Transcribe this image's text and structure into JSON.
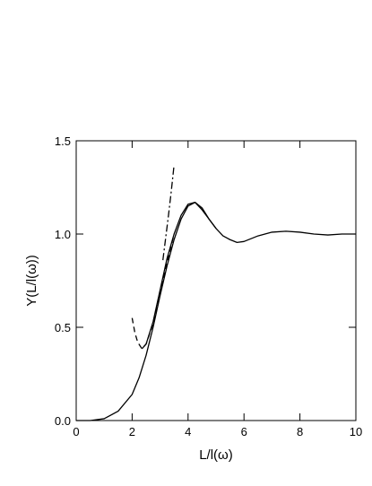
{
  "chart_data": {
    "type": "line",
    "x_label": "L/l(ω)",
    "y_label": "Υ(L/l(ω))",
    "xlim": [
      0,
      10
    ],
    "ylim": [
      0,
      1.5
    ],
    "xticks": [
      0,
      2,
      4,
      6,
      8,
      10
    ],
    "yticks": [
      {
        "value": 0,
        "label": "0.0"
      },
      {
        "value": 0.5,
        "label": "0.5"
      },
      {
        "value": 1,
        "label": "1.0"
      },
      {
        "value": 1.5,
        "label": "1.5"
      }
    ],
    "series": [
      {
        "color": "#000000",
        "dash": "solid",
        "x": [
          0,
          0.5,
          1,
          1.5,
          2,
          2.25,
          2.5,
          2.75,
          3,
          3.25,
          3.5,
          3.75,
          4,
          4.25,
          4.5,
          4.75,
          5,
          5.25,
          5.5,
          5.75,
          6,
          6.5,
          7,
          7.5,
          8,
          8.5,
          9,
          9.5,
          10
        ],
        "values": [
          0,
          0,
          0.01,
          0.05,
          0.14,
          0.23,
          0.35,
          0.5,
          0.67,
          0.83,
          0.97,
          1.08,
          1.15,
          1.17,
          1.13,
          1.08,
          1.03,
          0.99,
          0.97,
          0.955,
          0.96,
          0.99,
          1.01,
          1.015,
          1.01,
          1.0,
          0.995,
          1.0,
          1.0
        ]
      },
      {
        "color": "#000000",
        "dash": "solid",
        "x": [
          2.35,
          2.5,
          2.75,
          3,
          3.25,
          3.5,
          3.75,
          4,
          4.25,
          4.5,
          4.75,
          5
        ],
        "values": [
          0.385,
          0.41,
          0.53,
          0.7,
          0.87,
          1.0,
          1.1,
          1.16,
          1.17,
          1.14,
          1.08,
          1.03
        ]
      },
      {
        "color": "#000000",
        "dash": "dashed",
        "x": [
          2,
          2.1,
          2.2,
          2.35,
          2.5,
          2.75,
          3,
          3.25,
          3.5
        ],
        "values": [
          0.55,
          0.47,
          0.42,
          0.385,
          0.41,
          0.52,
          0.68,
          0.85,
          1.0
        ]
      },
      {
        "color": "#000000",
        "dash": "dashdot",
        "x": [
          3.1,
          3.2,
          3.3,
          3.4,
          3.5
        ],
        "values": [
          0.86,
          0.98,
          1.1,
          1.23,
          1.37
        ]
      }
    ]
  }
}
